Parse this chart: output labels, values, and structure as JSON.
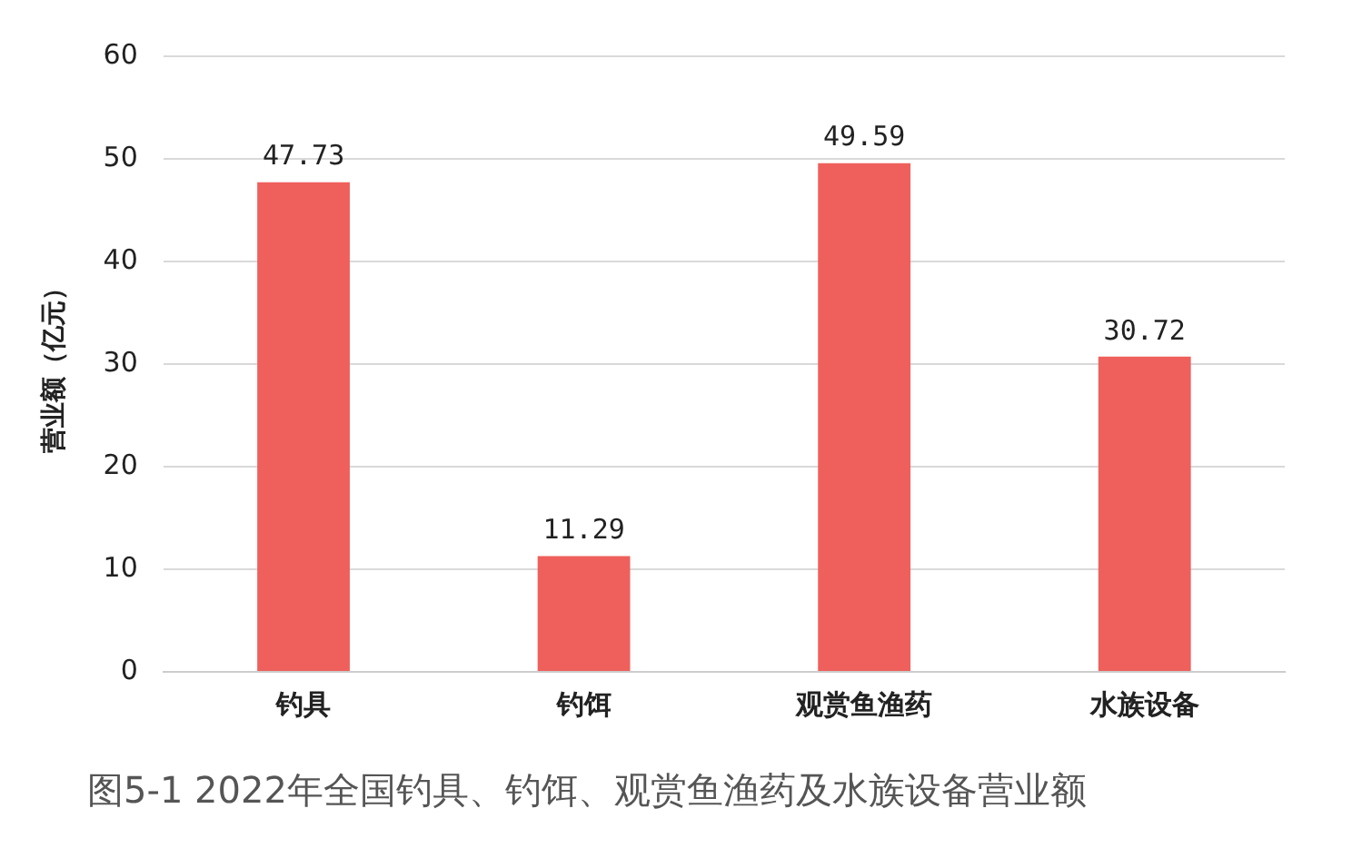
{
  "chart_data": {
    "type": "bar",
    "ylabel": "营业额（亿元）",
    "categories": [
      "钓具",
      "钓饵",
      "观赏鱼渔药",
      "水族设备"
    ],
    "values": [
      47.73,
      11.29,
      49.59,
      30.72
    ],
    "color": "#ef605c",
    "ylim": [
      0,
      60
    ],
    "yticks": [
      0,
      10,
      20,
      30,
      40,
      50,
      60
    ],
    "grid": "y",
    "data_labels": true,
    "annotations": [
      "图5-1 2022年全国钓具、钓饵、观赏鱼渔药及水族设备营业额"
    ]
  }
}
